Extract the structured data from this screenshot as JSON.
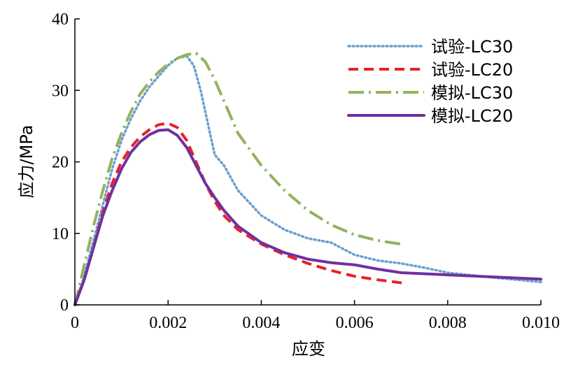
{
  "chart_data": {
    "type": "line",
    "xlabel": "应变",
    "ylabel": "应力/MPa",
    "xlim": [
      0,
      0.01
    ],
    "ylim": [
      0,
      40
    ],
    "xticks": [
      0,
      0.002,
      0.004,
      0.006,
      0.008,
      0.01
    ],
    "xtick_labels": [
      "0",
      "0.002",
      "0.004",
      "0.006",
      "0.008",
      "0.010"
    ],
    "yticks": [
      0,
      10,
      20,
      30,
      40
    ],
    "ytick_labels": [
      "0",
      "10",
      "20",
      "30",
      "40"
    ],
    "legend_position": "top-right",
    "series": [
      {
        "name": "试验-LC30",
        "color": "#6a9fcf",
        "style": "dotted",
        "points": [
          [
            0,
            0
          ],
          [
            0.0002,
            4
          ],
          [
            0.0004,
            9
          ],
          [
            0.0006,
            14
          ],
          [
            0.0008,
            19
          ],
          [
            0.001,
            23
          ],
          [
            0.0012,
            26
          ],
          [
            0.0014,
            28.5
          ],
          [
            0.0016,
            30.5
          ],
          [
            0.0018,
            32
          ],
          [
            0.002,
            33.5
          ],
          [
            0.0022,
            34.5
          ],
          [
            0.0024,
            34.8
          ],
          [
            0.00255,
            33.5
          ],
          [
            0.0027,
            30
          ],
          [
            0.0029,
            24
          ],
          [
            0.003,
            21
          ],
          [
            0.0032,
            19.5
          ],
          [
            0.0035,
            16
          ],
          [
            0.004,
            12.5
          ],
          [
            0.0045,
            10.5
          ],
          [
            0.005,
            9.3
          ],
          [
            0.0055,
            8.7
          ],
          [
            0.006,
            7
          ],
          [
            0.0065,
            6.2
          ],
          [
            0.007,
            5.8
          ],
          [
            0.0075,
            5.2
          ],
          [
            0.008,
            4.5
          ],
          [
            0.009,
            3.8
          ],
          [
            0.01,
            3.2
          ]
        ]
      },
      {
        "name": "试验-LC20",
        "color": "#e8202a",
        "style": "dashed",
        "points": [
          [
            0,
            0
          ],
          [
            0.0002,
            3.5
          ],
          [
            0.0004,
            8
          ],
          [
            0.0006,
            13
          ],
          [
            0.0008,
            17
          ],
          [
            0.001,
            20
          ],
          [
            0.0012,
            22
          ],
          [
            0.0014,
            23.5
          ],
          [
            0.0016,
            24.5
          ],
          [
            0.0018,
            25.2
          ],
          [
            0.002,
            25.4
          ],
          [
            0.0022,
            24.8
          ],
          [
            0.0024,
            23
          ],
          [
            0.0026,
            20
          ],
          [
            0.0028,
            17
          ],
          [
            0.003,
            14.5
          ],
          [
            0.0032,
            12.5
          ],
          [
            0.0035,
            10.5
          ],
          [
            0.004,
            8.5
          ],
          [
            0.0045,
            7
          ],
          [
            0.005,
            5.8
          ],
          [
            0.0055,
            4.8
          ],
          [
            0.006,
            4
          ],
          [
            0.0065,
            3.5
          ],
          [
            0.0071,
            3
          ]
        ]
      },
      {
        "name": "模拟-LC30",
        "color": "#93b35c",
        "style": "dashdot",
        "points": [
          [
            0,
            0
          ],
          [
            0.0002,
            5.5
          ],
          [
            0.0004,
            11
          ],
          [
            0.0006,
            16
          ],
          [
            0.0008,
            20.5
          ],
          [
            0.001,
            24
          ],
          [
            0.0012,
            27
          ],
          [
            0.0014,
            29.5
          ],
          [
            0.0016,
            31.2
          ],
          [
            0.0018,
            32.6
          ],
          [
            0.002,
            33.7
          ],
          [
            0.0022,
            34.5
          ],
          [
            0.0024,
            35
          ],
          [
            0.0026,
            35.2
          ],
          [
            0.0028,
            34
          ],
          [
            0.003,
            31.5
          ],
          [
            0.0032,
            28.5
          ],
          [
            0.0035,
            24
          ],
          [
            0.004,
            19.5
          ],
          [
            0.0045,
            16
          ],
          [
            0.005,
            13.2
          ],
          [
            0.0055,
            11.2
          ],
          [
            0.006,
            9.8
          ],
          [
            0.0065,
            9
          ],
          [
            0.007,
            8.5
          ]
        ]
      },
      {
        "name": "模拟-LC20",
        "color": "#7030a0",
        "style": "solid",
        "points": [
          [
            0,
            0
          ],
          [
            0.0002,
            3.5
          ],
          [
            0.0004,
            8
          ],
          [
            0.0006,
            12.5
          ],
          [
            0.0008,
            16
          ],
          [
            0.001,
            19
          ],
          [
            0.0012,
            21.3
          ],
          [
            0.0014,
            22.8
          ],
          [
            0.0016,
            23.8
          ],
          [
            0.0018,
            24.4
          ],
          [
            0.002,
            24.5
          ],
          [
            0.0022,
            23.7
          ],
          [
            0.0024,
            22
          ],
          [
            0.0026,
            19.5
          ],
          [
            0.0028,
            17
          ],
          [
            0.003,
            15
          ],
          [
            0.0032,
            13.2
          ],
          [
            0.0035,
            11
          ],
          [
            0.004,
            8.7
          ],
          [
            0.0045,
            7.3
          ],
          [
            0.005,
            6.4
          ],
          [
            0.0055,
            5.9
          ],
          [
            0.006,
            5.6
          ],
          [
            0.0065,
            5
          ],
          [
            0.007,
            4.5
          ],
          [
            0.008,
            4.2
          ],
          [
            0.009,
            3.9
          ],
          [
            0.01,
            3.6
          ]
        ]
      }
    ]
  }
}
